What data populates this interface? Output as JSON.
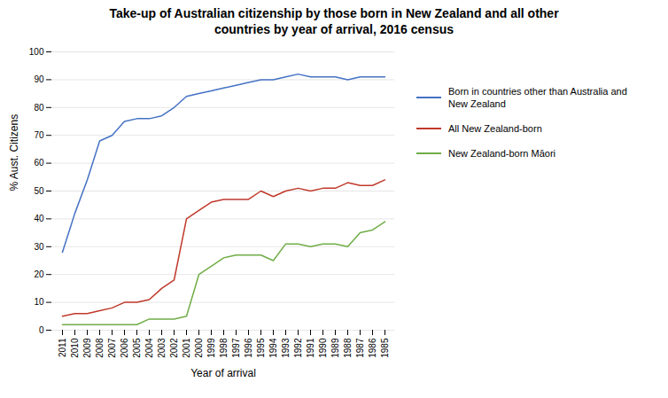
{
  "chart_data": {
    "type": "line",
    "title": "Take-up of Australian citizenship by those born in New Zealand and all other\ncountries by year of arrival,  2016 census",
    "xlabel": "Year of arrival",
    "ylabel": "% Aust. Citizens",
    "categories": [
      "2011",
      "2010",
      "2009",
      "2008",
      "2007",
      "2006",
      "2005",
      "2004",
      "2003",
      "2002",
      "2001",
      "2000",
      "1999",
      "1998",
      "1997",
      "1996",
      "1995",
      "1994",
      "1993",
      "1992",
      "1991",
      "1990",
      "1989",
      "1988",
      "1987",
      "1986",
      "1985"
    ],
    "series": [
      {
        "name": "Born in countries other than Australia and\nNew Zealand",
        "color": "#4472C4",
        "values": [
          28,
          42,
          54,
          68,
          70,
          75,
          76,
          76,
          77,
          80,
          84,
          85,
          86,
          87,
          88,
          89,
          90,
          90,
          91,
          92,
          91,
          91,
          91,
          90,
          91,
          91,
          91
        ]
      },
      {
        "name": "All New Zealand-born",
        "color": "#C0392B",
        "values": [
          5,
          6,
          6,
          7,
          8,
          10,
          10,
          11,
          15,
          18,
          40,
          43,
          46,
          47,
          47,
          47,
          50,
          48,
          50,
          51,
          50,
          51,
          51,
          53,
          52,
          52,
          54
        ]
      },
      {
        "name": "New Zealand-born Māori",
        "color": "#70AD47",
        "values": [
          2,
          2,
          2,
          2,
          2,
          2,
          2,
          4,
          4,
          4,
          5,
          20,
          23,
          26,
          27,
          27,
          27,
          25,
          31,
          31,
          30,
          31,
          31,
          30,
          35,
          36,
          39
        ]
      }
    ],
    "ylim": [
      0,
      100
    ],
    "yticks": [
      0,
      10,
      20,
      30,
      40,
      50,
      60,
      70,
      80,
      90,
      100
    ],
    "grid": true,
    "legend": "right"
  }
}
